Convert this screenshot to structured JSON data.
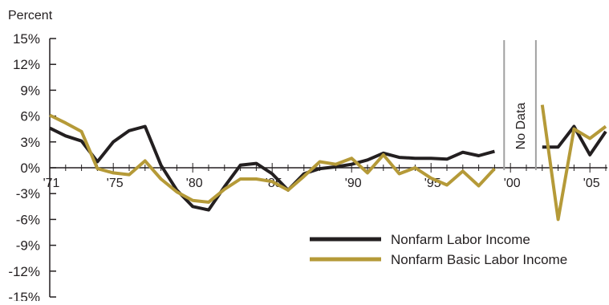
{
  "chart_data": {
    "type": "line",
    "y_unit_label": "Percent",
    "ylim": [
      -15,
      15
    ],
    "y_ticks": [
      "15%",
      "12%",
      "9%",
      "6%",
      "3%",
      "0%",
      "-3%",
      "-6%",
      "-9%",
      "-12%",
      "-15%"
    ],
    "y_tick_values": [
      15,
      12,
      9,
      6,
      3,
      0,
      -3,
      -6,
      -9,
      -12,
      -15
    ],
    "xlim": [
      1971,
      2006
    ],
    "x_ticks": [
      "'71",
      "'75",
      "'80",
      "'85",
      "'90",
      "'95",
      "'00",
      "'05"
    ],
    "x_tick_values": [
      1971,
      1975,
      1980,
      1985,
      1990,
      1995,
      2000,
      2005
    ],
    "no_data_range": [
      1999.6,
      2001.6
    ],
    "no_data_label": "No Data",
    "grid": false,
    "legend_position": "bottom-right",
    "series": [
      {
        "name": "Nonfarm Labor Income",
        "color": "#231f20",
        "segments": [
          {
            "x": [
              1971,
              1972,
              1973,
              1974,
              1975,
              1976,
              1977,
              1978,
              1979,
              1980,
              1981,
              1982,
              1983,
              1984,
              1985,
              1986,
              1987,
              1988,
              1989,
              1990,
              1991,
              1992,
              1993,
              1994,
              1995,
              1996,
              1997,
              1998,
              1999
            ],
            "y": [
              4.6,
              3.7,
              3.1,
              0.7,
              3.0,
              4.3,
              4.8,
              0.3,
              -2.6,
              -4.5,
              -4.9,
              -2.2,
              0.3,
              0.5,
              -0.7,
              -2.6,
              -0.7,
              -0.1,
              0.1,
              0.4,
              0.9,
              1.7,
              1.2,
              1.1,
              1.1,
              1.0,
              1.8,
              1.4,
              1.9
            ]
          },
          {
            "x": [
              2002,
              2003,
              2004,
              2005,
              2006
            ],
            "y": [
              2.4,
              2.4,
              4.8,
              1.5,
              4.2
            ]
          }
        ]
      },
      {
        "name": "Nonfarm Basic Labor Income",
        "color": "#b59a38",
        "segments": [
          {
            "x": [
              1971,
              1972,
              1973,
              1974,
              1975,
              1976,
              1977,
              1978,
              1979,
              1980,
              1981,
              1982,
              1983,
              1984,
              1985,
              1986,
              1987,
              1988,
              1989,
              1990,
              1991,
              1992,
              1993,
              1994,
              1995,
              1996,
              1997,
              1998,
              1999
            ],
            "y": [
              6.1,
              5.2,
              4.2,
              -0.1,
              -0.6,
              -0.8,
              0.8,
              -1.3,
              -2.8,
              -3.8,
              -4.0,
              -2.5,
              -1.3,
              -1.3,
              -1.6,
              -2.6,
              -1.0,
              0.7,
              0.4,
              1.1,
              -0.6,
              1.5,
              -0.7,
              0.0,
              -1.2,
              -2.0,
              -0.4,
              -2.1,
              -0.1
            ]
          },
          {
            "x": [
              2002,
              2003,
              2004,
              2005,
              2006
            ],
            "y": [
              7.3,
              -6.0,
              4.5,
              3.4,
              4.8
            ]
          }
        ]
      }
    ]
  }
}
